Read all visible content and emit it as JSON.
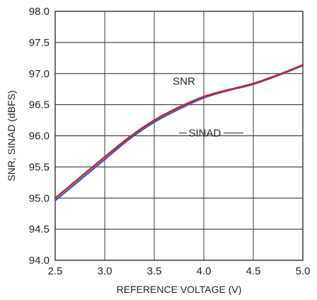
{
  "chart_data": {
    "type": "line",
    "title": "",
    "top_fragment": "",
    "xlabel": "REFERENCE VOLTAGE (V)",
    "ylabel": "SNR, SINAD (dBFS)",
    "xlim": [
      2.5,
      5.0
    ],
    "ylim": [
      94.0,
      98.0
    ],
    "xticks": [
      "2.5",
      "3.0",
      "3.5",
      "4.0",
      "4.5",
      "5.0"
    ],
    "yticks": [
      "94.0",
      "94.5",
      "95.0",
      "95.5",
      "96.0",
      "96.5",
      "97.0",
      "97.5",
      "98.0"
    ],
    "grid": true,
    "legend": "none",
    "series": [
      {
        "name": "SNR",
        "color": "#c1272d",
        "x": [
          2.5,
          2.75,
          3.0,
          3.25,
          3.5,
          3.75,
          4.0,
          4.25,
          4.5,
          4.75,
          5.0
        ],
        "y": [
          95.0,
          95.33,
          95.66,
          95.98,
          96.25,
          96.46,
          96.63,
          96.74,
          96.84,
          96.98,
          97.14
        ]
      },
      {
        "name": "SINAD",
        "color": "#3a5fb0",
        "x": [
          2.5,
          2.75,
          3.0,
          3.25,
          3.5,
          3.75,
          4.0,
          4.25,
          4.5,
          4.75,
          5.0
        ],
        "y": [
          94.96,
          95.29,
          95.62,
          95.95,
          96.22,
          96.43,
          96.61,
          96.73,
          96.83,
          96.97,
          97.13
        ]
      }
    ],
    "annotations": [
      {
        "text": "SNR",
        "series": "SNR"
      },
      {
        "text": "SINAD",
        "series": "SINAD"
      }
    ]
  }
}
